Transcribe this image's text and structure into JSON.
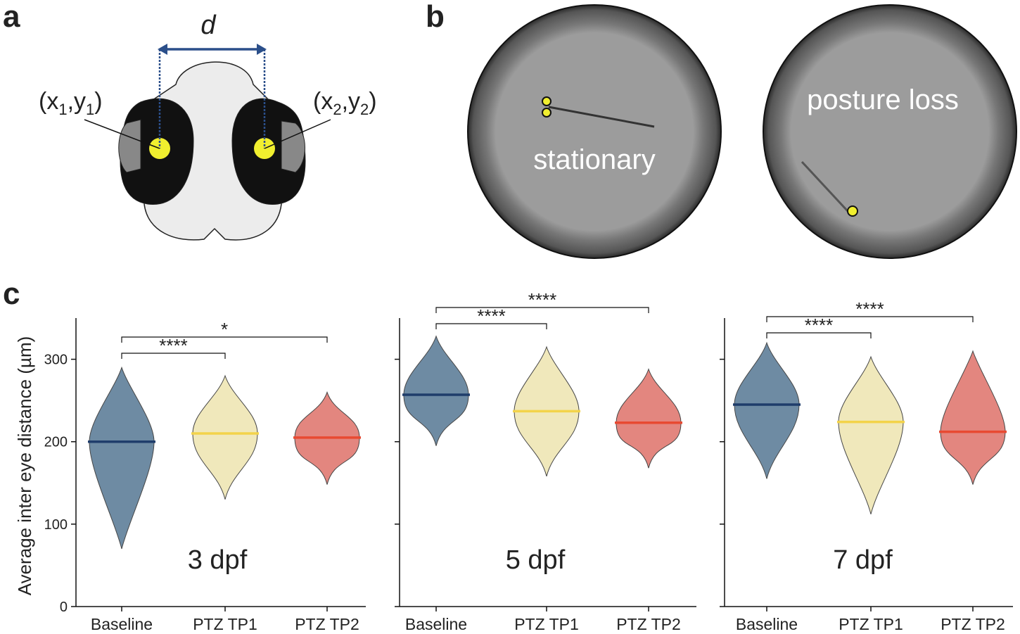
{
  "panel_labels": [
    "a",
    "b",
    "c"
  ],
  "panel_a": {
    "distance_label": "d",
    "left_point": [
      "(x",
      "1",
      ",y",
      "1",
      ")"
    ],
    "right_point": [
      "(x",
      "2",
      ",y",
      "2",
      ")"
    ]
  },
  "panel_b": {
    "left_label": "stationary",
    "right_label": "posture loss"
  },
  "chart_data": [
    {
      "type": "swarm",
      "y_label": "Average inter eye distance (µm)",
      "annotation": "3 dpf",
      "categories": [
        "Baseline",
        "PTZ TP1",
        "PTZ TP2"
      ],
      "values": [
        200,
        210,
        205
      ],
      "mins": [
        70,
        130,
        148
      ],
      "maxs": [
        290,
        280,
        260
      ],
      "colors": [
        "#5f7f9a",
        "#efe6b4",
        "#e07a72"
      ],
      "median_colors": [
        "#1f3d6b",
        "#f3d34a",
        "#e84a32"
      ],
      "ylim": [
        0,
        350
      ],
      "yticks": [
        0,
        100,
        200,
        300
      ],
      "ytick_labels": true,
      "comparisons": [
        {
          "pair": [
            0,
            1
          ],
          "label": "****"
        },
        {
          "pair": [
            0,
            2
          ],
          "label": "*"
        }
      ]
    },
    {
      "type": "swarm",
      "annotation": "5 dpf",
      "categories": [
        "Baseline",
        "PTZ TP1",
        "PTZ TP2"
      ],
      "values": [
        257,
        237,
        223
      ],
      "mins": [
        195,
        158,
        168
      ],
      "maxs": [
        328,
        315,
        288
      ],
      "colors": [
        "#5f7f9a",
        "#efe6b4",
        "#e07a72"
      ],
      "median_colors": [
        "#1f3d6b",
        "#f3d34a",
        "#e84a32"
      ],
      "ylim": [
        0,
        350
      ],
      "yticks": [
        0,
        100,
        200,
        300
      ],
      "ytick_labels": false,
      "comparisons": [
        {
          "pair": [
            0,
            1
          ],
          "label": "****"
        },
        {
          "pair": [
            0,
            2
          ],
          "label": "****"
        }
      ]
    },
    {
      "type": "swarm",
      "annotation": "7 dpf",
      "categories": [
        "Baseline",
        "PTZ TP1",
        "PTZ TP2"
      ],
      "values": [
        245,
        224,
        212
      ],
      "mins": [
        155,
        112,
        148
      ],
      "maxs": [
        320,
        303,
        310
      ],
      "colors": [
        "#5f7f9a",
        "#efe6b4",
        "#e07a72"
      ],
      "median_colors": [
        "#1f3d6b",
        "#f3d34a",
        "#e84a32"
      ],
      "ylim": [
        0,
        350
      ],
      "yticks": [
        0,
        100,
        200,
        300
      ],
      "ytick_labels": false,
      "comparisons": [
        {
          "pair": [
            0,
            1
          ],
          "label": "****"
        },
        {
          "pair": [
            0,
            2
          ],
          "label": "****"
        }
      ]
    }
  ]
}
